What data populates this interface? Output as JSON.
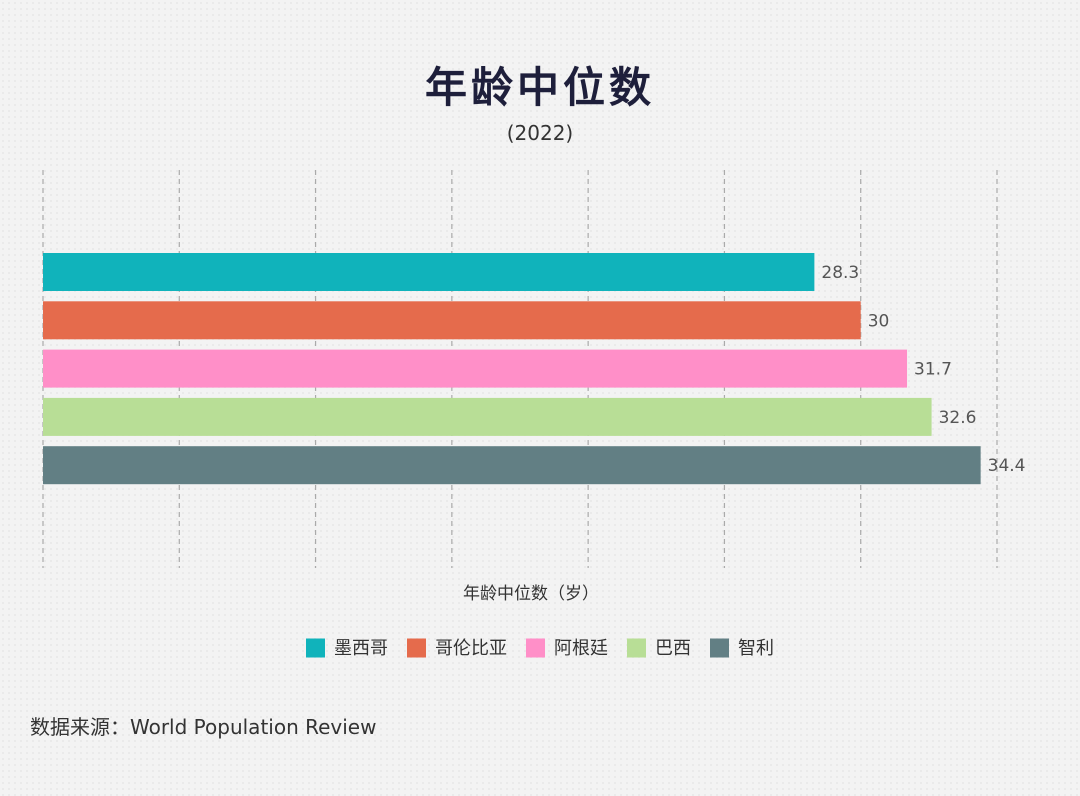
{
  "title": "年龄中位数",
  "subtitle": "(2022)",
  "source": "数据来源：World Population Review",
  "chart_data": {
    "type": "bar",
    "orientation": "horizontal",
    "xlabel": "年龄中位数（岁）",
    "xlim": [
      0,
      35
    ],
    "gridlines": [
      0,
      5,
      10,
      15,
      20,
      25,
      30,
      35
    ],
    "grid": true,
    "legend_position": "bottom",
    "series": [
      {
        "name": "墨西哥",
        "value": 28.3,
        "label": "28.3",
        "color": "#10b3bb"
      },
      {
        "name": "哥伦比亚",
        "value": 30,
        "label": "30",
        "color": "#e56b4c"
      },
      {
        "name": "阿根廷",
        "value": 31.7,
        "label": "31.7",
        "color": "#ff8fc8"
      },
      {
        "name": "巴西",
        "value": 32.6,
        "label": "32.6",
        "color": "#b8de96"
      },
      {
        "name": "智利",
        "value": 34.4,
        "label": "34.4",
        "color": "#627f84"
      }
    ]
  }
}
